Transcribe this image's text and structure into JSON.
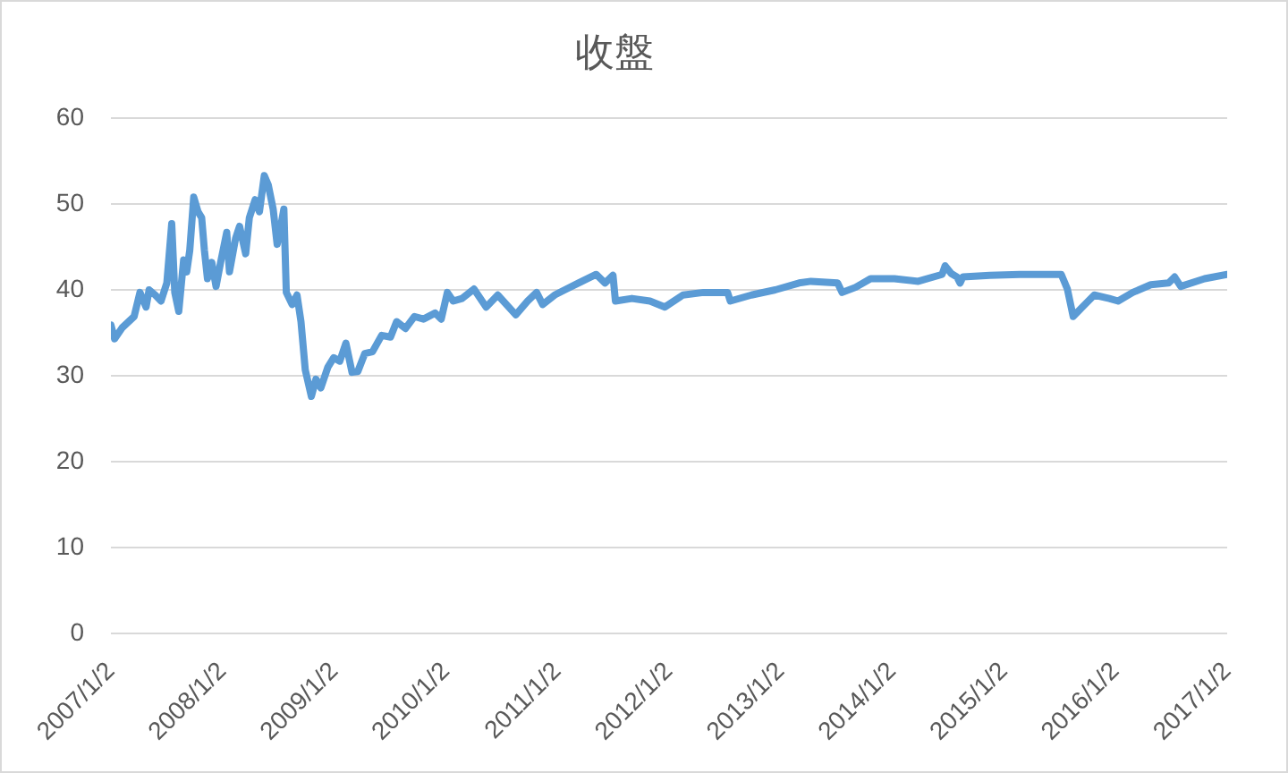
{
  "chart_data": {
    "type": "line",
    "title": "收盤",
    "x": [
      "2007-01-02",
      "2007-01-14",
      "2007-02-08",
      "2007-03-19",
      "2007-04-07",
      "2007-04-27",
      "2007-05-07",
      "2007-05-27",
      "2007-06-15",
      "2007-07-04",
      "2007-07-20",
      "2007-07-30",
      "2007-08-12",
      "2007-08-28",
      "2007-09-07",
      "2007-09-17",
      "2007-09-30",
      "2007-10-14",
      "2007-10-26",
      "2007-11-04",
      "2007-11-14",
      "2007-11-28",
      "2007-12-12",
      "2007-12-27",
      "2008-01-16",
      "2008-01-25",
      "2008-02-14",
      "2008-02-27",
      "2008-03-18",
      "2008-03-30",
      "2008-04-18",
      "2008-05-02",
      "2008-05-18",
      "2008-05-31",
      "2008-06-16",
      "2008-06-29",
      "2008-07-09",
      "2008-07-21",
      "2008-07-29",
      "2008-08-17",
      "2008-09-02",
      "2008-09-15",
      "2008-09-29",
      "2008-10-19",
      "2008-11-03",
      "2008-11-19",
      "2008-12-12",
      "2008-12-31",
      "2009-01-20",
      "2009-02-09",
      "2009-03-01",
      "2009-03-20",
      "2009-04-12",
      "2009-05-07",
      "2009-06-06",
      "2009-07-05",
      "2009-07-25",
      "2009-08-23",
      "2009-09-21",
      "2009-10-21",
      "2009-11-28",
      "2009-12-18",
      "2010-01-07",
      "2010-01-26",
      "2010-02-24",
      "2010-04-04",
      "2010-05-14",
      "2010-06-21",
      "2010-08-19",
      "2010-09-27",
      "2010-10-26",
      "2010-11-15",
      "2010-12-24",
      "2011-02-01",
      "2011-03-12",
      "2011-05-09",
      "2011-06-07",
      "2011-07-03",
      "2011-07-11",
      "2011-09-03",
      "2011-11-01",
      "2011-12-20",
      "2012-02-17",
      "2012-04-24",
      "2012-07-12",
      "2012-07-21",
      "2012-09-28",
      "2012-12-15",
      "2013-03-03",
      "2013-04-11",
      "2013-07-07",
      "2013-07-22",
      "2013-09-04",
      "2013-10-23",
      "2014-01-09",
      "2014-03-28",
      "2014-06-14",
      "2014-06-24",
      "2014-07-14",
      "2014-08-02",
      "2014-08-12",
      "2014-08-21",
      "2014-11-17",
      "2015-02-23",
      "2015-05-12",
      "2015-07-09",
      "2015-07-29",
      "2015-08-17",
      "2015-09-16",
      "2015-10-25",
      "2015-12-13",
      "2016-01-11",
      "2016-02-28",
      "2016-04-27",
      "2016-06-24",
      "2016-07-14",
      "2016-08-03",
      "2016-10-20",
      "2017-01-02"
    ],
    "series": [
      {
        "color": "#5b9bd5",
        "values": [
          35.9,
          34.3,
          35.6,
          36.9,
          39.7,
          38.0,
          40.0,
          39.4,
          38.7,
          40.8,
          47.7,
          39.7,
          37.5,
          43.5,
          42.1,
          44.6,
          50.8,
          49.1,
          48.4,
          44.6,
          41.3,
          43.2,
          40.4,
          43.2,
          46.7,
          42.1,
          46.0,
          47.4,
          44.2,
          48.4,
          50.5,
          49.1,
          53.3,
          52.2,
          49.4,
          45.3,
          47.0,
          49.4,
          39.7,
          38.3,
          39.4,
          36.3,
          30.7,
          27.6,
          29.6,
          28.6,
          31.0,
          32.1,
          31.7,
          33.8,
          30.4,
          30.5,
          32.6,
          32.8,
          34.7,
          34.5,
          36.3,
          35.5,
          36.9,
          36.6,
          37.3,
          36.6,
          39.7,
          38.7,
          39.0,
          40.1,
          38.0,
          39.4,
          37.1,
          38.7,
          39.7,
          38.3,
          39.4,
          40.1,
          40.8,
          41.8,
          40.8,
          41.7,
          38.7,
          39.0,
          38.7,
          38.0,
          39.4,
          39.7,
          39.7,
          38.7,
          39.4,
          40.0,
          40.8,
          41.0,
          40.8,
          39.7,
          40.3,
          41.3,
          41.3,
          41.0,
          41.8,
          42.8,
          41.9,
          41.5,
          40.8,
          41.5,
          41.7,
          41.8,
          41.8,
          41.8,
          40.1,
          36.9,
          38.0,
          39.4,
          39.0,
          38.7,
          39.7,
          40.6,
          40.8,
          41.5,
          40.4,
          41.3,
          41.8
        ]
      }
    ],
    "xlim": [
      "2007-01-02",
      "2017-01-02"
    ],
    "xticks": [
      {
        "value": "2007-01-02",
        "label": "2007/1/2"
      },
      {
        "value": "2008-01-02",
        "label": "2008/1/2"
      },
      {
        "value": "2009-01-02",
        "label": "2009/1/2"
      },
      {
        "value": "2010-01-02",
        "label": "2010/1/2"
      },
      {
        "value": "2011-01-02",
        "label": "2011/1/2"
      },
      {
        "value": "2012-01-02",
        "label": "2012/1/2"
      },
      {
        "value": "2013-01-02",
        "label": "2013/1/2"
      },
      {
        "value": "2014-01-02",
        "label": "2014/1/2"
      },
      {
        "value": "2015-01-02",
        "label": "2015/1/2"
      },
      {
        "value": "2016-01-02",
        "label": "2016/1/2"
      },
      {
        "value": "2017-01-02",
        "label": "2017/1/2"
      }
    ],
    "ylim": [
      0,
      60
    ],
    "yticks": [
      0,
      10,
      20,
      30,
      40,
      50,
      60
    ],
    "grid": "y"
  }
}
